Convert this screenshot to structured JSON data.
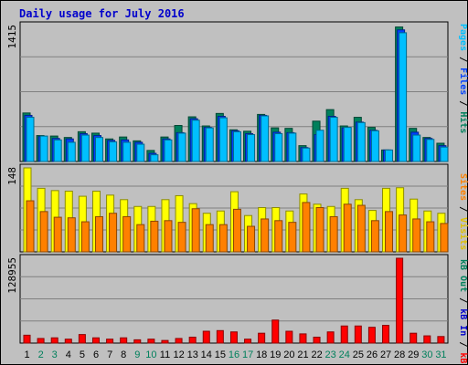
{
  "chart_data": {
    "type": "bar",
    "title": "Daily usage for July 2016",
    "x": [
      "1",
      "2",
      "3",
      "4",
      "5",
      "6",
      "7",
      "8",
      "9",
      "10",
      "11",
      "12",
      "13",
      "14",
      "15",
      "16",
      "17",
      "18",
      "19",
      "20",
      "21",
      "22",
      "23",
      "24",
      "25",
      "26",
      "27",
      "28",
      "29",
      "30",
      "31"
    ],
    "weekend_days": [
      "2",
      "3",
      "9",
      "10",
      "16",
      "17",
      "23",
      "24",
      "30",
      "31"
    ],
    "panels": [
      {
        "id": "top",
        "ymax": 1415,
        "ymax_label": "1415",
        "legend": [
          {
            "text": "Hits",
            "color": "#00805c"
          },
          {
            "text": " / ",
            "color": "#000000"
          },
          {
            "text": "Files",
            "color": "#0040ff"
          },
          {
            "text": " / ",
            "color": "#000000"
          },
          {
            "text": "Pages",
            "color": "#00c0ff"
          }
        ],
        "series": [
          {
            "name": "Hits",
            "color": "#00805c",
            "values": [
              505,
              270,
              265,
              250,
              310,
              295,
              235,
              255,
              215,
              115,
              255,
              375,
              465,
              370,
              500,
              330,
              315,
              490,
              350,
              345,
              165,
              420,
              540,
              370,
              460,
              355,
              120,
              1400,
              345,
              250,
              190
            ]
          },
          {
            "name": "Files",
            "color": "#0040ff",
            "values": [
              480,
              260,
              240,
              235,
              290,
              270,
              220,
              225,
              200,
              85,
              235,
              300,
              445,
              355,
              470,
              320,
              290,
              480,
              305,
              300,
              145,
              280,
              470,
              350,
              410,
              325,
              120,
              1370,
              305,
              240,
              165
            ]
          },
          {
            "name": "Pages",
            "color": "#00bfff",
            "values": [
              460,
              265,
              225,
              200,
              275,
              250,
              205,
              200,
              180,
              70,
              225,
              295,
              430,
              350,
              455,
              310,
              280,
              475,
              290,
              295,
              140,
              325,
              460,
              355,
              405,
              320,
              120,
              1340,
              275,
              230,
              150
            ]
          }
        ]
      },
      {
        "id": "middle",
        "ymax": 148,
        "ymax_label": "148",
        "legend": [
          {
            "text": "Visits",
            "color": "#e0c000"
          },
          {
            "text": " / ",
            "color": "#000000"
          },
          {
            "text": "Sites",
            "color": "#ff8000"
          }
        ],
        "series": [
          {
            "name": "Visits",
            "color": "#ffff00",
            "values": [
              148,
              112,
              108,
              107,
              98,
              107,
              100,
              92,
              80,
              80,
              92,
              99,
              85,
              68,
              72,
              106,
              64,
              78,
              78,
              72,
              102,
              84,
              80,
              112,
              92,
              73,
              112,
              113,
              93,
              72,
              68
            ]
          },
          {
            "name": "Sites",
            "color": "#ff8000",
            "values": [
              90,
              71,
              61,
              60,
              53,
              62,
              68,
              62,
              48,
              54,
              55,
              52,
              76,
              48,
              48,
              75,
              45,
              58,
              55,
              52,
              87,
              78,
              62,
              84,
              82,
              55,
              71,
              65,
              58,
              53,
              50
            ]
          }
        ]
      },
      {
        "id": "bottom",
        "ymax": 128955,
        "ymax_label": "128955",
        "legend": [
          {
            "text": "KBytes In",
            "color": "#0000cc"
          },
          {
            "text": " / ",
            "color": "#000000"
          },
          {
            "text": "KBytes Out",
            "color": "#00805c"
          }
        ],
        "legend_top": [
          {
            "text": "kB F",
            "color": "#ff0000"
          },
          {
            "text": " / ",
            "color": "#000000"
          },
          {
            "text": "kB In",
            "color": "#0000cc"
          },
          {
            "text": " / ",
            "color": "#000000"
          },
          {
            "text": "kB Out",
            "color": "#00805c"
          }
        ],
        "series": [
          {
            "name": "kB F",
            "color": "#ff0000",
            "values": [
              12000,
              7000,
              8000,
              6000,
              13000,
              8000,
              6000,
              8000,
              5000,
              6000,
              4000,
              7000,
              9000,
              18000,
              19000,
              17000,
              6000,
              15000,
              35000,
              18000,
              14000,
              9000,
              17000,
              26000,
              26000,
              24000,
              27000,
              128955,
              15000,
              11000,
              10000
            ]
          }
        ]
      }
    ]
  }
}
